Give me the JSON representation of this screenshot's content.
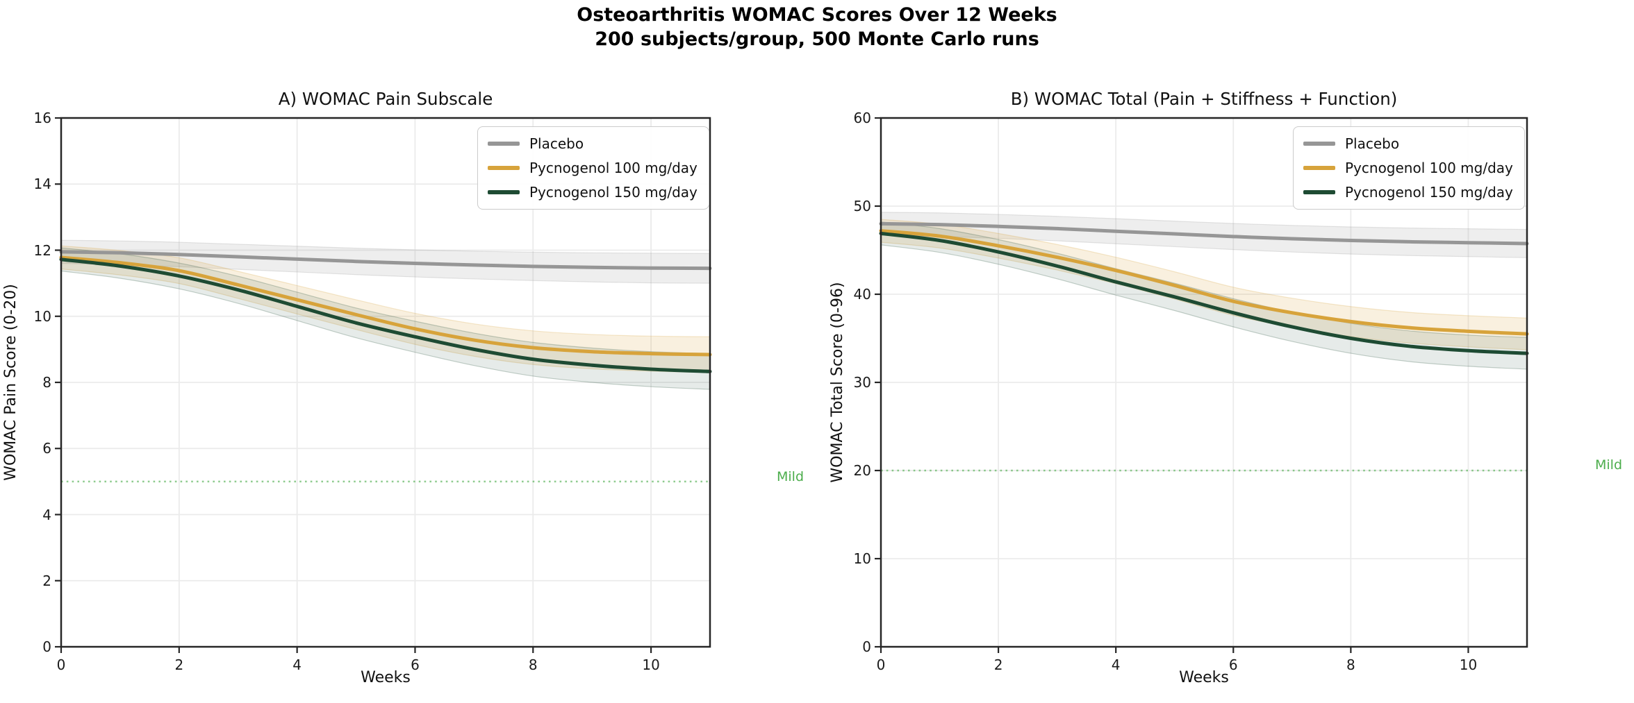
{
  "figure": {
    "title_line1": "Osteoarthritis WOMAC Scores Over 12 Weeks",
    "title_line2": "200 subjects/group, 500 Monte Carlo runs"
  },
  "colors": {
    "placebo": "#969696",
    "p100": "#D7A33B",
    "p150": "#1E4B33",
    "threshold": "#4CAD4C",
    "grid": "#EBEBEB",
    "spine": "#262626",
    "tick": "#262626"
  },
  "chart_data": [
    {
      "type": "line",
      "title": "A) WOMAC Pain Subscale",
      "xlabel": "Weeks",
      "ylabel": "WOMAC Pain Score (0-20)",
      "xlim": [
        0,
        11
      ],
      "ylim": [
        0,
        16
      ],
      "xticks": [
        0,
        2,
        4,
        6,
        8,
        10
      ],
      "yticks": [
        0,
        2,
        4,
        6,
        8,
        10,
        12,
        14,
        16
      ],
      "grid": true,
      "legend_position": "upper right",
      "legend": [
        "Placebo",
        "Pycnogenol 100 mg/day",
        "Pycnogenol 150 mg/day"
      ],
      "threshold": {
        "y": 5,
        "label": "Mild"
      },
      "x": [
        0,
        1,
        2,
        3,
        4,
        5,
        6,
        7,
        8,
        9,
        10,
        11
      ],
      "series": [
        {
          "name": "Placebo",
          "color_key": "placebo",
          "band_alpha": 0.16,
          "values": [
            11.95,
            11.92,
            11.87,
            11.8,
            11.73,
            11.66,
            11.6,
            11.55,
            11.51,
            11.48,
            11.46,
            11.45
          ],
          "band": [
            0.35,
            0.36,
            0.37,
            0.38,
            0.39,
            0.4,
            0.41,
            0.42,
            0.43,
            0.44,
            0.45,
            0.45
          ]
        },
        {
          "name": "Pycnogenol 100 mg/day",
          "color_key": "p100",
          "band_alpha": 0.16,
          "values": [
            11.78,
            11.62,
            11.38,
            10.95,
            10.5,
            10.05,
            9.62,
            9.28,
            9.05,
            8.93,
            8.87,
            8.84
          ],
          "band": [
            0.35,
            0.37,
            0.39,
            0.41,
            0.43,
            0.45,
            0.47,
            0.49,
            0.51,
            0.52,
            0.53,
            0.54
          ]
        },
        {
          "name": "Pycnogenol 150 mg/day",
          "color_key": "p150",
          "band_alpha": 0.11,
          "values": [
            11.72,
            11.52,
            11.22,
            10.8,
            10.3,
            9.8,
            9.38,
            9.0,
            8.7,
            8.52,
            8.4,
            8.33
          ],
          "band": [
            0.35,
            0.37,
            0.39,
            0.41,
            0.43,
            0.45,
            0.47,
            0.49,
            0.51,
            0.52,
            0.53,
            0.54
          ]
        }
      ]
    },
    {
      "type": "line",
      "title": "B) WOMAC Total (Pain + Stiffness + Function)",
      "xlabel": "Weeks",
      "ylabel": "WOMAC Total Score (0-96)",
      "xlim": [
        0,
        11
      ],
      "ylim": [
        0,
        60
      ],
      "xticks": [
        0,
        2,
        4,
        6,
        8,
        10
      ],
      "yticks": [
        0,
        10,
        20,
        30,
        40,
        50,
        60
      ],
      "grid": true,
      "legend_position": "upper right",
      "legend": [
        "Placebo",
        "Pycnogenol 100 mg/day",
        "Pycnogenol 150 mg/day"
      ],
      "threshold": {
        "y": 20,
        "label": "Mild"
      },
      "x": [
        0,
        1,
        2,
        3,
        4,
        5,
        6,
        7,
        8,
        9,
        10,
        11
      ],
      "series": [
        {
          "name": "Placebo",
          "color_key": "placebo",
          "band_alpha": 0.16,
          "values": [
            48.0,
            47.9,
            47.7,
            47.45,
            47.15,
            46.85,
            46.55,
            46.3,
            46.1,
            45.95,
            45.85,
            45.75
          ],
          "band": [
            1.3,
            1.33,
            1.36,
            1.39,
            1.42,
            1.45,
            1.48,
            1.51,
            1.54,
            1.56,
            1.58,
            1.6
          ]
        },
        {
          "name": "Pycnogenol 100 mg/day",
          "color_key": "p100",
          "band_alpha": 0.16,
          "values": [
            47.2,
            46.6,
            45.5,
            44.2,
            42.7,
            41.0,
            39.2,
            37.9,
            36.9,
            36.2,
            35.8,
            35.5
          ],
          "band": [
            1.3,
            1.35,
            1.4,
            1.45,
            1.5,
            1.55,
            1.6,
            1.65,
            1.7,
            1.74,
            1.77,
            1.8
          ]
        },
        {
          "name": "Pycnogenol 150 mg/day",
          "color_key": "p150",
          "band_alpha": 0.11,
          "values": [
            46.9,
            46.1,
            44.8,
            43.2,
            41.4,
            39.7,
            37.9,
            36.3,
            35.0,
            34.1,
            33.6,
            33.3
          ],
          "band": [
            1.3,
            1.35,
            1.4,
            1.45,
            1.5,
            1.55,
            1.6,
            1.65,
            1.7,
            1.74,
            1.77,
            1.8
          ]
        }
      ]
    }
  ]
}
